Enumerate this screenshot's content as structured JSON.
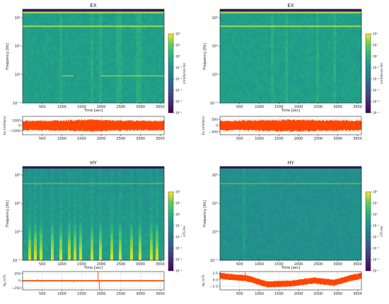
{
  "chart_data": [
    {
      "type": "heatmap",
      "title": "EX",
      "xlabel": "Time [sec]",
      "ylabel": "Frequency [Hz]",
      "xlim": [
        0,
        3600
      ],
      "ylim": [
        0.1,
        200
      ],
      "yscale": "log",
      "x_ticks": [
        "500",
        "1000",
        "1500",
        "2000",
        "2500",
        "3000",
        "3500"
      ],
      "y_ticks": [
        "10⁻¹",
        "10⁰",
        "10¹",
        "10²"
      ],
      "colorbar": {
        "label": "(mV/km)/√Hz",
        "ticks": [
          "10⁻⁵",
          "10⁻⁴",
          "10⁻³",
          "10⁻²",
          "10⁻¹",
          "10⁰",
          "10¹",
          "10²"
        ],
        "scale": "log",
        "range": [
          1e-05,
          100
        ],
        "colormap": "viridis"
      },
      "features": {
        "line_frequencies_hz": [
          50,
          150
        ],
        "vertical_bursts_sec": [
          1000,
          1750,
          1950,
          2450,
          2950
        ],
        "horizontal_tones": [
          {
            "freq_hz": 0.9,
            "from_sec": 1000,
            "to_sec": 1300
          },
          {
            "freq_hz": 0.9,
            "from_sec": 2000,
            "to_sec": 3600
          }
        ]
      },
      "timeseries": {
        "type": "line",
        "ylabel": "Ex (mV/km)",
        "ylim": [
          -1800,
          1800
        ],
        "y_ticks": [
          "1000",
          "0",
          "−1000"
        ],
        "x_ticks": [
          "500",
          "1000",
          "1500",
          "2000",
          "2500",
          "3000",
          "3500"
        ],
        "amplitude_profile": [
          [
            0,
            1000
          ],
          [
            1000,
            1100
          ],
          [
            1800,
            1300
          ],
          [
            2200,
            1100
          ],
          [
            3600,
            1000
          ]
        ],
        "color": "#ff4500"
      }
    },
    {
      "type": "heatmap",
      "title": "EX",
      "xlabel": "Time [sec]",
      "ylabel": "Frequency [Hz]",
      "xlim": [
        0,
        3600
      ],
      "ylim": [
        0.1,
        200
      ],
      "yscale": "log",
      "x_ticks": [
        "500",
        "1000",
        "1500",
        "2000",
        "2500",
        "3000",
        "3500"
      ],
      "y_ticks": [
        "10⁻¹",
        "10⁰",
        "10¹",
        "10²"
      ],
      "colorbar": {
        "label": "(mV/km)/√Hz",
        "ticks": [
          "10⁻⁵",
          "10⁻⁴",
          "10⁻³",
          "10⁻²",
          "10⁻¹",
          "10⁰",
          "10¹",
          "10²"
        ],
        "scale": "log",
        "range": [
          1e-05,
          100
        ],
        "colormap": "viridis"
      },
      "features": {
        "line_frequencies_hz": [
          50,
          150
        ],
        "vertical_bursts_sec": [
          1350,
          1700,
          2500,
          2900
        ],
        "horizontal_tones": []
      },
      "timeseries": {
        "type": "line",
        "ylabel": "Ex (mV/km)",
        "ylim": [
          -750,
          750
        ],
        "y_ticks": [
          "500",
          "0",
          "−500"
        ],
        "x_ticks": [
          "500",
          "1000",
          "1500",
          "2000",
          "2500",
          "3000",
          "3500"
        ],
        "amplitude_profile": [
          [
            0,
            430
          ],
          [
            1000,
            460
          ],
          [
            1800,
            520
          ],
          [
            2600,
            480
          ],
          [
            3600,
            440
          ]
        ],
        "color": "#ff4500"
      }
    },
    {
      "type": "heatmap",
      "title": "HY",
      "xlabel": "Time [sec]",
      "ylabel": "Frequency [Hz]",
      "xlim": [
        0,
        3600
      ],
      "ylim": [
        0.1,
        200
      ],
      "yscale": "log",
      "x_ticks": [
        "500",
        "1000",
        "1500",
        "2000",
        "2500",
        "3000",
        "3500"
      ],
      "y_ticks": [
        "10⁻¹",
        "10⁰",
        "10¹",
        "10²"
      ],
      "colorbar": {
        "label": "nT/√Hz",
        "ticks": [
          "10⁻⁵",
          "10⁻⁴",
          "10⁻³",
          "10⁻²",
          "10⁻¹",
          "10⁰",
          "10¹",
          "10²"
        ],
        "scale": "log",
        "range": [
          1e-05,
          100
        ],
        "colormap": "viridis"
      },
      "features": {
        "line_frequencies_hz": [
          50
        ],
        "vertical_bursts_sec": [
          150,
          350,
          500,
          750,
          1000,
          1200,
          1300,
          1500,
          1750,
          1950,
          2250,
          2500,
          2750,
          3000,
          3250,
          3450
        ],
        "horizontal_tones": []
      },
      "timeseries": {
        "type": "line",
        "ylabel": "Hy (nT)",
        "ylim": [
          -320,
          320
        ],
        "y_ticks": [
          "250",
          "0",
          "−250"
        ],
        "x_ticks": [
          "500",
          "1000",
          "1500",
          "2000",
          "2500",
          "3000",
          "3500"
        ],
        "amplitude_profile": [
          [
            0,
            8
          ],
          [
            3600,
            8
          ]
        ],
        "spikes": [
          [
            380,
            50
          ],
          [
            560,
            -35
          ],
          [
            1000,
            40
          ],
          [
            1300,
            -60
          ],
          [
            1920,
            320
          ],
          [
            1950,
            -300
          ],
          [
            2450,
            -25
          ],
          [
            3050,
            35
          ]
        ],
        "color": "#ff4500"
      }
    },
    {
      "type": "heatmap",
      "title": "HY",
      "xlabel": "Time [sec]",
      "ylabel": "Frequency [Hz]",
      "xlim": [
        0,
        3600
      ],
      "ylim": [
        0.1,
        200
      ],
      "yscale": "log",
      "x_ticks": [
        "500",
        "1000",
        "1500",
        "2000",
        "2500",
        "3000",
        "3500"
      ],
      "y_ticks": [
        "10⁻¹",
        "10⁰",
        "10¹",
        "10²"
      ],
      "colorbar": {
        "label": "nT/√Hz",
        "ticks": [
          "10⁻⁵",
          "10⁻⁴",
          "10⁻³",
          "10⁻²",
          "10⁻¹",
          "10⁰",
          "10¹",
          "10²"
        ],
        "scale": "log",
        "range": [
          1e-05,
          100
        ],
        "colormap": "viridis"
      },
      "features": {
        "line_frequencies_hz": [
          50
        ],
        "vertical_bursts_sec": [
          600
        ],
        "horizontal_tones": []
      },
      "timeseries": {
        "type": "line",
        "ylabel": "Hy (nT)",
        "ylim": [
          -4,
          3.2
        ],
        "y_ticks": [
          "2.5",
          "0.0",
          "−2.5"
        ],
        "x_ticks": [
          "500",
          "1000",
          "1500",
          "2000",
          "2500",
          "3000",
          "3500"
        ],
        "baseline_profile": [
          [
            0,
            1.5
          ],
          [
            700,
            0.5
          ],
          [
            1200,
            -1.8
          ],
          [
            1800,
            -1.5
          ],
          [
            2400,
            -0.3
          ],
          [
            2900,
            -1.2
          ],
          [
            3300,
            0.5
          ],
          [
            3600,
            1.6
          ]
        ],
        "band_halfwidth": 1.3,
        "spikes": [
          [
            640,
            2.8
          ]
        ],
        "color": "#ff4500"
      }
    }
  ]
}
